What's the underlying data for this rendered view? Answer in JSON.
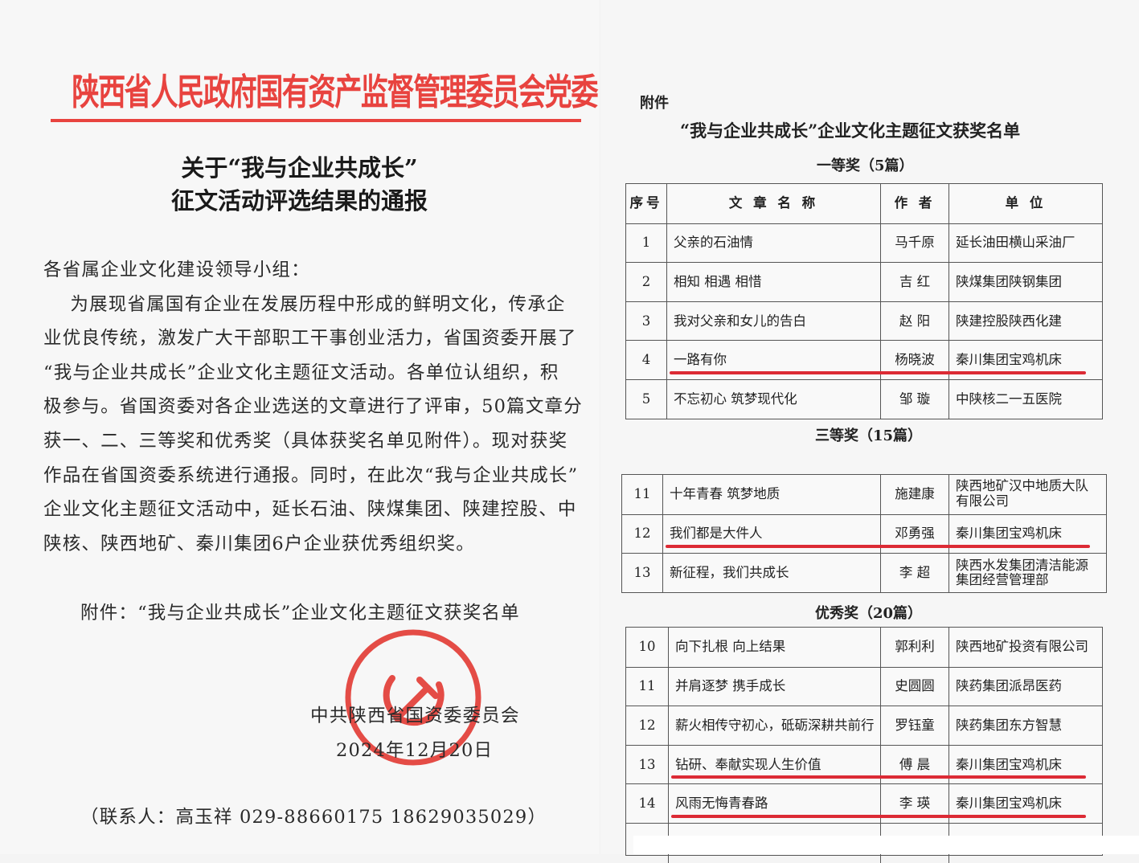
{
  "notice": {
    "header": "陕西省人民政府国有资产监督管理委员会党委",
    "title_lines": [
      "关于“我与企业共成长”",
      "征文活动评选结果的通报"
    ],
    "body_lines": [
      "各省属企业文化建设领导小组：",
      "    为展现省属国有企业在发展历程中形成的鲜明文化，传承企",
      "业优良传统，激发广大干部职工干事创业活力，省国资委开展了",
      "“我与企业共成长”企业文化主题征文活动。各单位认组织，积",
      "极参与。省国资委对各企业选送的文章进行了评审，50篇文章分",
      "获一、二、三等奖和优秀奖（具体获奖名单见附件）。现对获奖",
      "作品在省国资委系统进行通报。同时，在此次“我与企业共成长”",
      "企业文化主题征文活动中，延长石油、陕煤集团、陕建控股、中",
      "陕核、陕西地矿、秦川集团6户企业获优秀组织奖。"
    ],
    "attachment": "附件：“我与企业共成长”企业文化主题征文获奖名单",
    "signature": "中共陕西省国资委委员会",
    "date": "2024年12月20日",
    "contact": "（联系人：高玉祥    029-88660175    18629035029）",
    "seal_color": "#e33a33",
    "header_color": "#e8433f"
  },
  "annex": {
    "label": "附件",
    "title": "“我与企业共成长”企业文化主题征文获奖名单",
    "columns": [
      "序号",
      "文 章 名 称",
      "作 者",
      "单 位"
    ],
    "sections": [
      {
        "caption": "一等奖（5篇）",
        "rows": [
          {
            "no": "1",
            "title": "父亲的石油情",
            "author": "马千原",
            "unit": "延长油田横山采油厂",
            "highlight": false
          },
          {
            "no": "2",
            "title": "相知 相遇 相惜",
            "author": "吉 红",
            "unit": "陕煤集团陕钢集团",
            "highlight": false
          },
          {
            "no": "3",
            "title": "我对父亲和女儿的告白",
            "author": "赵 阳",
            "unit": "陕建控股陕西化建",
            "highlight": false
          },
          {
            "no": "4",
            "title": "一路有你",
            "author": "杨晓波",
            "unit": "秦川集团宝鸡机床",
            "highlight": true
          },
          {
            "no": "5",
            "title": "不忘初心 筑梦现代化",
            "author": "邹 璇",
            "unit": "中陕核二一五医院",
            "highlight": false
          }
        ]
      },
      {
        "caption": "三等奖（15篇）",
        "rows": [
          {
            "no": "11",
            "title": "十年青春  筑梦地质",
            "author": "施建康",
            "unit": "陕西地矿汉中地质大队\n有限公司",
            "highlight": false
          },
          {
            "no": "12",
            "title": "我们都是大件人",
            "author": "邓勇强",
            "unit": "秦川集团宝鸡机床",
            "highlight": true
          },
          {
            "no": "13",
            "title": "新征程，我们共成长",
            "author": "李 超",
            "unit": "陕西水发集团清洁能源\n集团经营管理部",
            "highlight": false
          }
        ]
      },
      {
        "caption": "优秀奖（20篇）",
        "rows": [
          {
            "no": "10",
            "title": "向下扎根  向上结果",
            "author": "郭利利",
            "unit": "陕西地矿投资有限公司",
            "highlight": false
          },
          {
            "no": "11",
            "title": "并肩逐梦 携手成长",
            "author": "史圆圆",
            "unit": "陕药集团派昂医药",
            "highlight": false
          },
          {
            "no": "12",
            "title": "薪火相传守初心，砥砺深耕共前行",
            "author": "罗钰童",
            "unit": "陕药集团东方智慧",
            "highlight": false
          },
          {
            "no": "13",
            "title": "钻研、奉献实现人生价值",
            "author": "傅 晨",
            "unit": "秦川集团宝鸡机床",
            "highlight": true
          },
          {
            "no": "14",
            "title": "风雨无悔青春路",
            "author": "李 瑛",
            "unit": "秦川集团宝鸡机床",
            "highlight": true
          }
        ]
      }
    ],
    "highlight_color": "#dc2b35"
  }
}
